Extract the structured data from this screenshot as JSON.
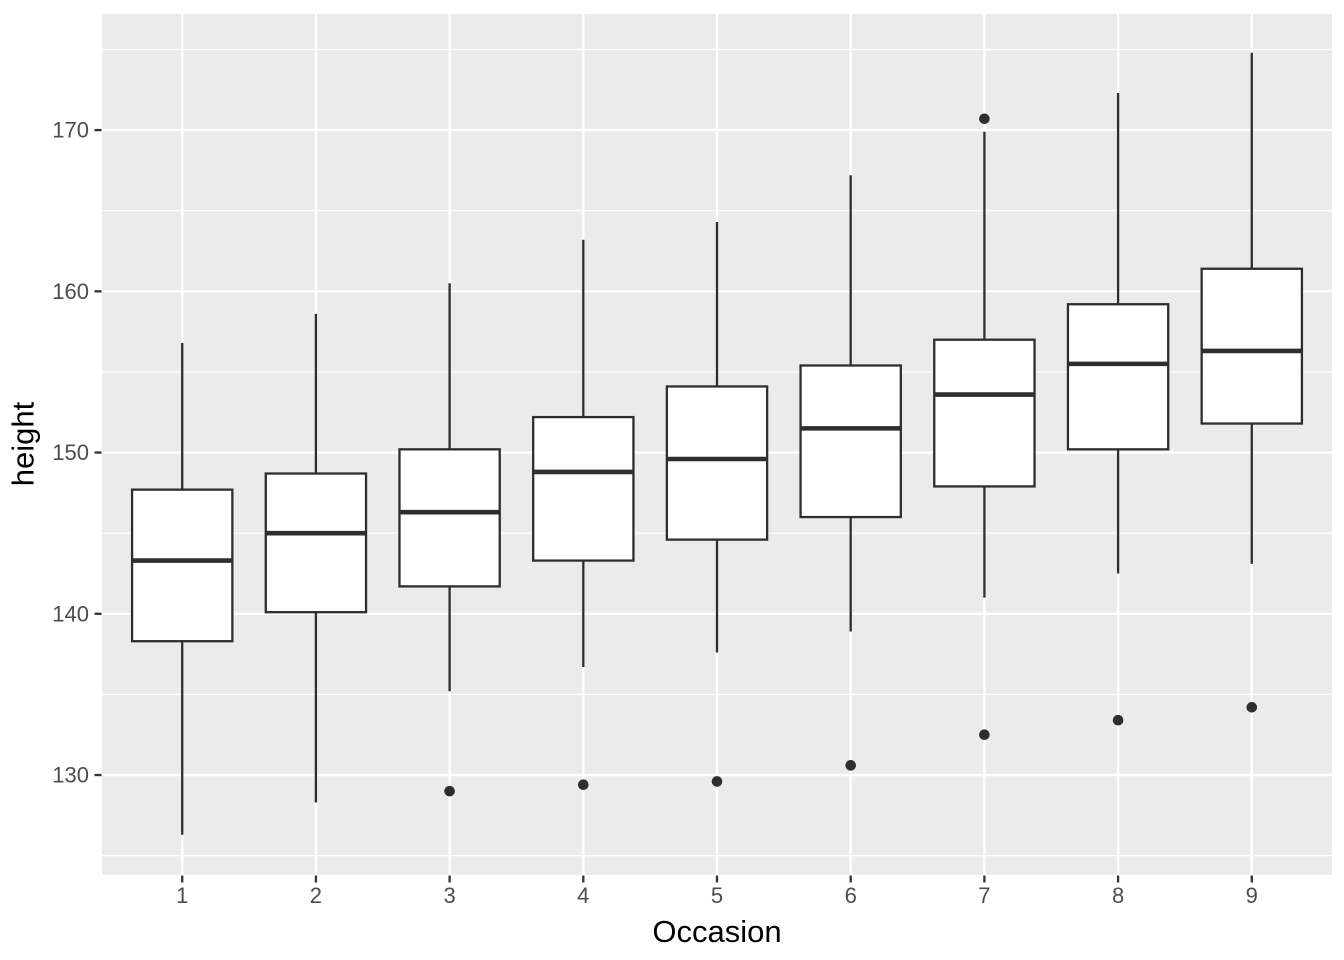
{
  "figure": {
    "background": "#FFFFFF"
  },
  "chart_data": {
    "type": "boxplot",
    "title": "",
    "xlabel": "Occasion",
    "ylabel": "height",
    "legend": "none",
    "grid": true,
    "categories": [
      "1",
      "2",
      "3",
      "4",
      "5",
      "6",
      "7",
      "8",
      "9"
    ],
    "x_axis": {
      "positions": [
        1,
        2,
        3,
        4,
        5,
        6,
        7,
        8,
        9
      ],
      "range": [
        0.4,
        9.6
      ]
    },
    "y_axis": {
      "ticks": [
        130,
        140,
        150,
        160,
        170
      ],
      "tick_labels": [
        "130",
        "140",
        "150",
        "160",
        "170"
      ],
      "minor_ticks": [
        125,
        135,
        145,
        155,
        165,
        175
      ],
      "range": [
        123.8,
        177.2
      ]
    },
    "box_width": 0.75,
    "boxes": [
      {
        "occasion": "1",
        "whisker_low": 126.3,
        "q1": 138.3,
        "median": 143.3,
        "q3": 147.7,
        "whisker_high": 156.8,
        "outliers_low": [],
        "outliers_high": []
      },
      {
        "occasion": "2",
        "whisker_low": 128.3,
        "q1": 140.1,
        "median": 145.0,
        "q3": 148.7,
        "whisker_high": 158.6,
        "outliers_low": [],
        "outliers_high": []
      },
      {
        "occasion": "3",
        "whisker_low": 135.2,
        "q1": 141.7,
        "median": 146.3,
        "q3": 150.2,
        "whisker_high": 160.5,
        "outliers_low": [
          129.0
        ],
        "outliers_high": []
      },
      {
        "occasion": "4",
        "whisker_low": 136.7,
        "q1": 143.3,
        "median": 148.8,
        "q3": 152.2,
        "whisker_high": 163.2,
        "outliers_low": [
          129.4
        ],
        "outliers_high": []
      },
      {
        "occasion": "5",
        "whisker_low": 137.6,
        "q1": 144.6,
        "median": 149.6,
        "q3": 154.1,
        "whisker_high": 164.3,
        "outliers_low": [
          129.6
        ],
        "outliers_high": []
      },
      {
        "occasion": "6",
        "whisker_low": 138.9,
        "q1": 146.0,
        "median": 151.5,
        "q3": 155.4,
        "whisker_high": 167.2,
        "outliers_low": [
          130.6
        ],
        "outliers_high": []
      },
      {
        "occasion": "7",
        "whisker_low": 141.0,
        "q1": 147.9,
        "median": 153.6,
        "q3": 157.0,
        "whisker_high": 169.9,
        "outliers_low": [
          132.5
        ],
        "outliers_high": [
          170.7
        ]
      },
      {
        "occasion": "8",
        "whisker_low": 142.5,
        "q1": 150.2,
        "median": 155.5,
        "q3": 159.2,
        "whisker_high": 172.3,
        "outliers_low": [
          133.4
        ],
        "outliers_high": []
      },
      {
        "occasion": "9",
        "whisker_low": 143.1,
        "q1": 151.8,
        "median": 156.3,
        "q3": 161.4,
        "whisker_high": 174.8,
        "outliers_low": [
          134.2
        ],
        "outliers_high": []
      }
    ],
    "style": {
      "panel_bg": "#EBEBEB",
      "grid_color": "#FFFFFF",
      "box_fill": "#FFFFFF",
      "line_color": "#2E2E2E",
      "outlier_color": "#2E2E2E",
      "tick_label_color": "#4D4D4D",
      "tick_mark_color": "#333333",
      "axis_title_color": "#000000"
    }
  }
}
